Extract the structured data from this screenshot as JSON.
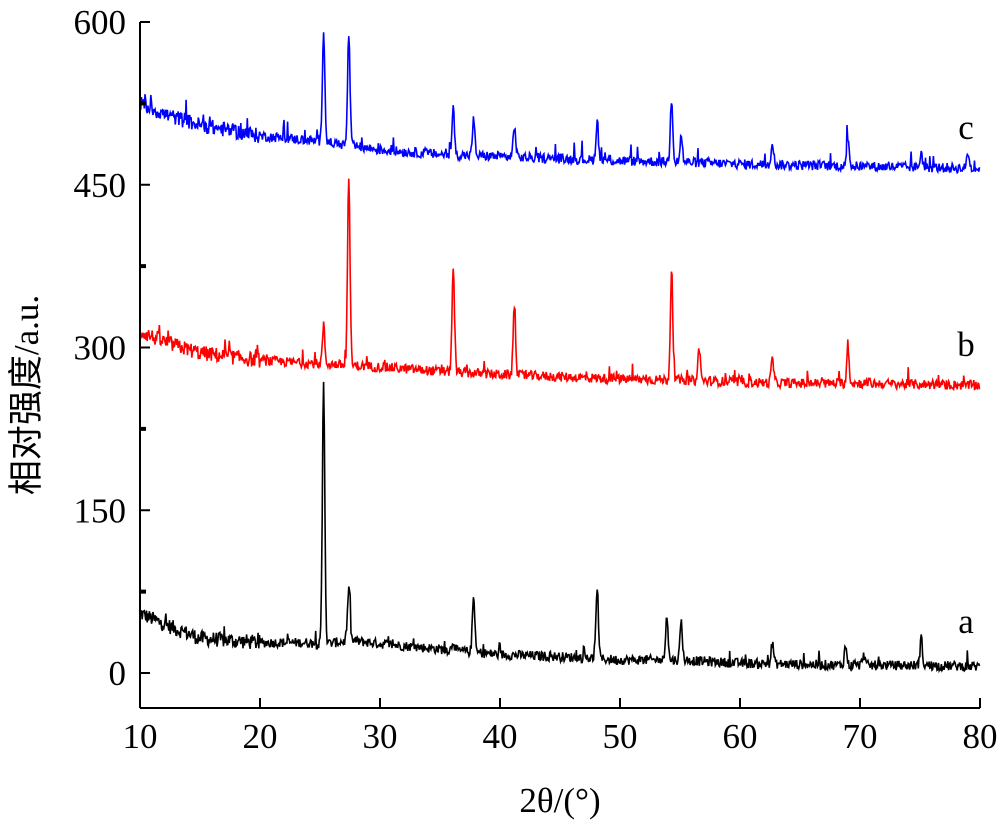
{
  "chart_data": {
    "type": "line",
    "title": "",
    "xlabel": "2θ/(°)",
    "ylabel": "相对强度/a.u.",
    "xlim": [
      10,
      80
    ],
    "ylim": [
      -35,
      615
    ],
    "xticks": [
      10,
      20,
      30,
      40,
      50,
      60,
      70,
      80
    ],
    "yticks": [
      0,
      150,
      300,
      450,
      600
    ],
    "xtick_labels": [
      "10",
      "20",
      "30",
      "40",
      "50",
      "60",
      "70",
      "80"
    ],
    "ytick_labels": [
      "0",
      "150",
      "300",
      "450",
      "600"
    ],
    "grid": false,
    "legend": "none",
    "series": [
      {
        "name": "a",
        "color": "#000000",
        "baseline": [
          [
            10,
            55
          ],
          [
            12,
            45
          ],
          [
            15,
            32
          ],
          [
            20,
            28
          ],
          [
            24,
            28
          ],
          [
            25,
            26
          ],
          [
            27.5,
            30
          ],
          [
            30,
            27
          ],
          [
            35,
            22
          ],
          [
            40,
            17
          ],
          [
            45,
            15
          ],
          [
            50,
            12
          ],
          [
            55,
            12
          ],
          [
            60,
            9
          ],
          [
            65,
            8
          ],
          [
            70,
            7
          ],
          [
            75,
            7
          ],
          [
            80,
            6
          ]
        ],
        "peaks": [
          [
            25.3,
            270
          ],
          [
            27.4,
            80
          ],
          [
            36.1,
            30
          ],
          [
            37.8,
            70
          ],
          [
            48.1,
            80
          ],
          [
            53.9,
            55
          ],
          [
            55.1,
            48
          ],
          [
            62.7,
            28
          ],
          [
            68.8,
            25
          ],
          [
            70.3,
            18
          ],
          [
            75.1,
            32
          ]
        ],
        "label": "a"
      },
      {
        "name": "b",
        "color": "#ff0000",
        "baseline": [
          [
            10,
            315
          ],
          [
            12,
            305
          ],
          [
            15,
            295
          ],
          [
            20,
            288
          ],
          [
            25,
            285
          ],
          [
            30,
            282
          ],
          [
            35,
            278
          ],
          [
            40,
            275
          ],
          [
            45,
            273
          ],
          [
            50,
            271
          ],
          [
            55,
            270
          ],
          [
            60,
            268
          ],
          [
            65,
            267
          ],
          [
            70,
            267
          ],
          [
            75,
            266
          ],
          [
            80,
            265
          ]
        ],
        "peaks": [
          [
            25.3,
            320
          ],
          [
            27.4,
            460
          ],
          [
            36.1,
            375
          ],
          [
            41.2,
            340
          ],
          [
            54.3,
            370
          ],
          [
            56.6,
            300
          ],
          [
            62.7,
            290
          ],
          [
            69.0,
            300
          ]
        ],
        "label": "b"
      },
      {
        "name": "c",
        "color": "#0000ff",
        "baseline": [
          [
            10,
            525
          ],
          [
            12,
            515
          ],
          [
            15,
            505
          ],
          [
            20,
            495
          ],
          [
            25,
            490
          ],
          [
            30,
            482
          ],
          [
            35,
            478
          ],
          [
            40,
            476
          ],
          [
            45,
            474
          ],
          [
            50,
            472
          ],
          [
            55,
            471
          ],
          [
            60,
            469
          ],
          [
            65,
            468
          ],
          [
            70,
            467
          ],
          [
            75,
            466
          ],
          [
            80,
            465
          ]
        ],
        "peaks": [
          [
            25.3,
            595
          ],
          [
            27.4,
            590
          ],
          [
            36.1,
            520
          ],
          [
            37.8,
            510
          ],
          [
            41.2,
            505
          ],
          [
            48.1,
            510
          ],
          [
            54.3,
            530
          ],
          [
            55.1,
            495
          ],
          [
            62.7,
            490
          ],
          [
            69.0,
            495
          ],
          [
            75.1,
            480
          ],
          [
            79.0,
            480
          ]
        ],
        "label": "c"
      }
    ]
  }
}
